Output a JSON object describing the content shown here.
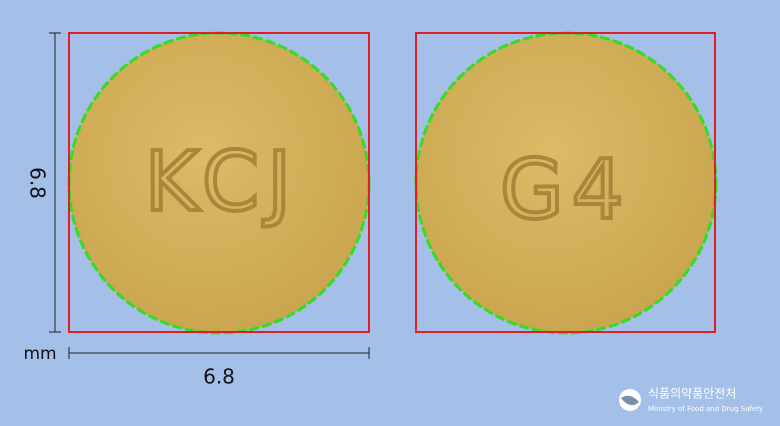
{
  "dimensions": {
    "width": "6.8",
    "height": "6.8",
    "unit": "mm"
  },
  "pills": [
    {
      "imprint": "KCJ"
    },
    {
      "imprint": "G4"
    }
  ],
  "logo": {
    "korean": "식품의약품안전처",
    "english": "Ministry of Food and Drug Safety"
  }
}
